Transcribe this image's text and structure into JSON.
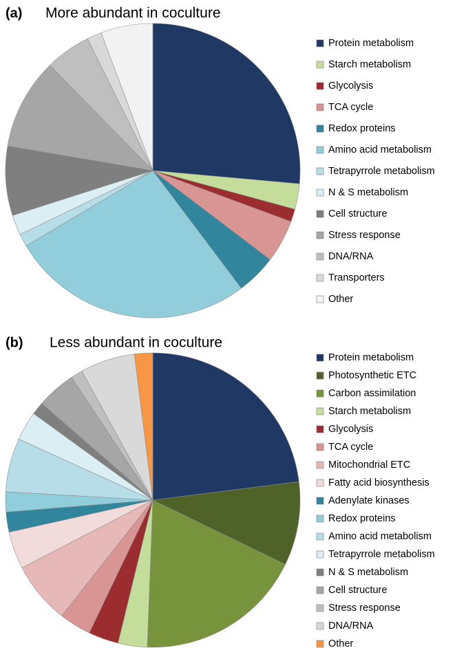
{
  "chart_data": [
    {
      "type": "pie",
      "panel_label": "(a)",
      "title": "More abundant in coculture",
      "categories": [
        "Protein metabolism",
        "Starch metabolism",
        "Glycolysis",
        "TCA cycle",
        "Redox proteins",
        "Amino acid metabolism",
        "Tetrapyrrole metabolism",
        "N & S metabolism",
        "Cell structure",
        "Stress response",
        "DNA/RNA",
        "Transporters",
        "Other"
      ],
      "values": [
        26.4,
        2.8,
        1.4,
        4.7,
        4.4,
        26.7,
        1.4,
        2.2,
        7.6,
        10,
        5,
        1.6,
        5.7
      ],
      "colors": [
        "#1f3864",
        "#c5dd9a",
        "#9b2d30",
        "#d99594",
        "#31859c",
        "#92cddc",
        "#b7dde8",
        "#dbeef4",
        "#7f7f7f",
        "#a6a6a6",
        "#bfbfbf",
        "#d9d9d9",
        "#f2f2f2"
      ]
    },
    {
      "type": "pie",
      "panel_label": "(b)",
      "title": "Less abundant in coculture",
      "categories": [
        "Protein metabolism",
        "Photosynthetic ETC",
        "Carbon assimilation",
        "Starch metabolism",
        "Glycolysis",
        "TCA cycle",
        "Mitochondrial ETC",
        "Fatty acid biosynthesis",
        "Adenylate kinases",
        "Redox proteins",
        "Amino acid metabolism",
        "Tetrapyrrole metabolism",
        "N & S metabolism",
        "Cell structure",
        "Stress response",
        "DNA/RNA",
        "Other"
      ],
      "values": [
        23,
        9.2,
        18.4,
        3.2,
        3.3,
        3.5,
        6.8,
        4.1,
        2.2,
        2.2,
        5.9,
        3.2,
        1.4,
        4.3,
        1.3,
        6,
        2
      ],
      "colors": [
        "#1f3864",
        "#4f6228",
        "#77933c",
        "#c5dd9a",
        "#9b2d30",
        "#d99594",
        "#e6b9b8",
        "#f2dcdb",
        "#31859c",
        "#92cddc",
        "#b7dde8",
        "#dbeef4",
        "#7f7f7f",
        "#a6a6a6",
        "#bfbfbf",
        "#d9d9d9",
        "#f79646"
      ]
    }
  ]
}
